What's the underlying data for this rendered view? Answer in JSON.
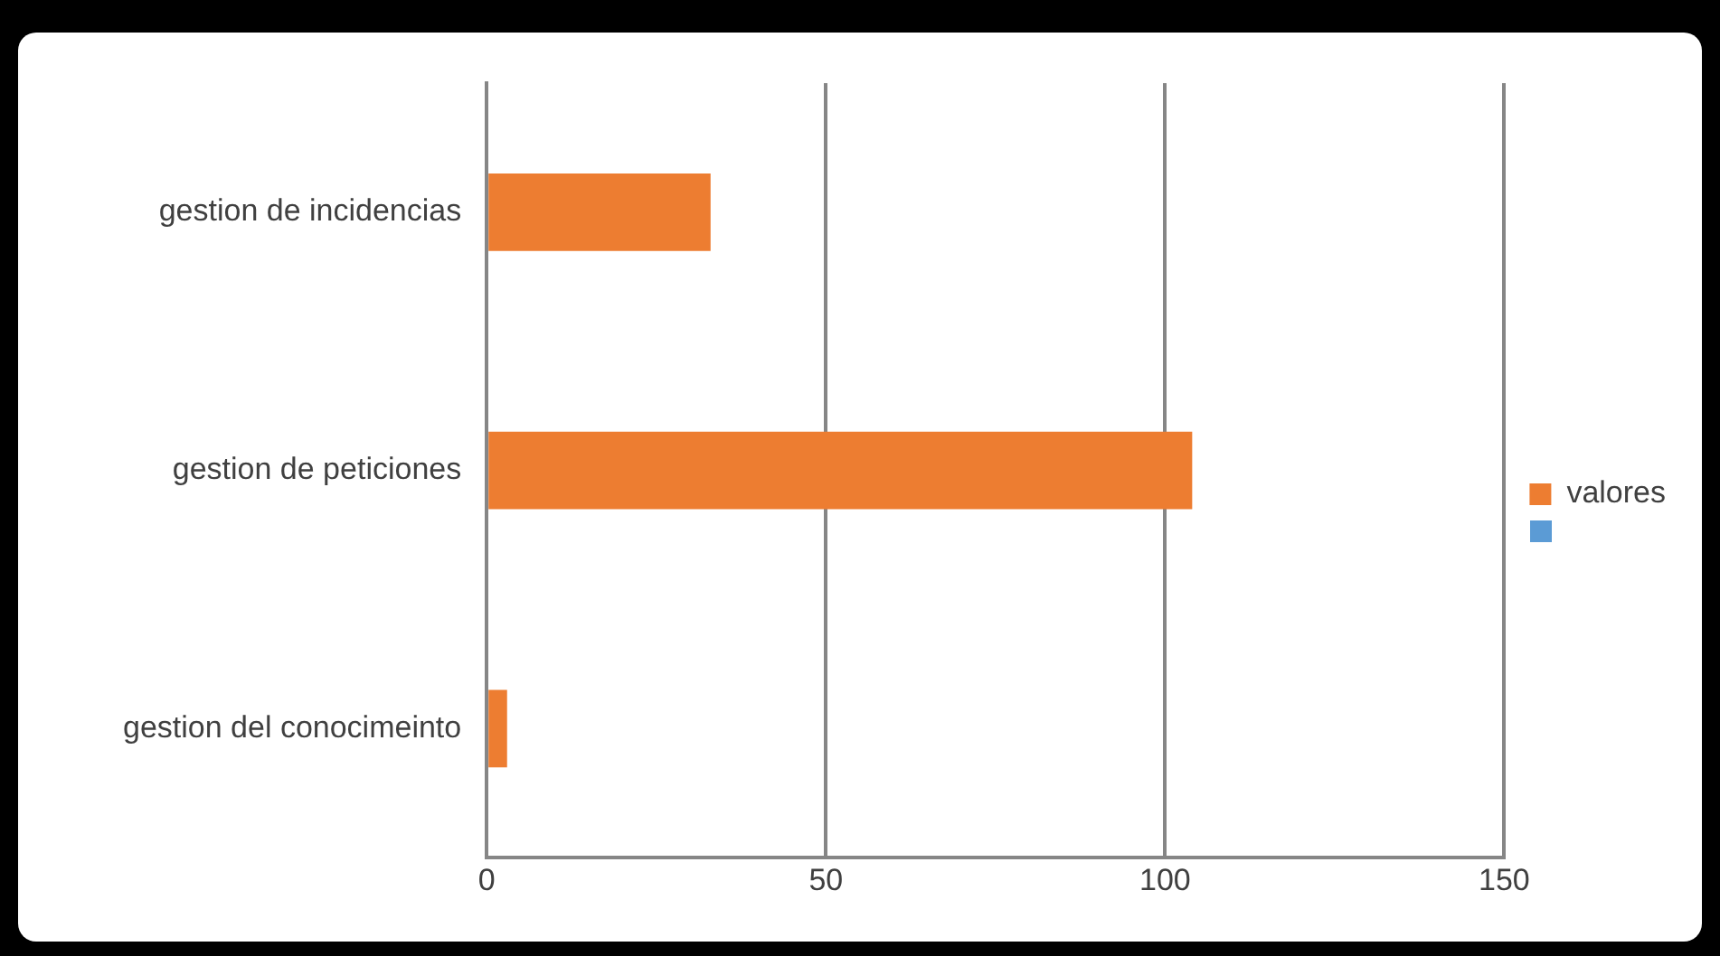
{
  "chart_data": {
    "type": "bar",
    "orientation": "horizontal",
    "categories": [
      "gestion de incidencias",
      "gestion de peticiones",
      "gestion del conocimeinto"
    ],
    "series": [
      {
        "name": "valores",
        "color": "#ed7d31",
        "values": [
          33,
          104,
          3
        ]
      }
    ],
    "xlim": [
      0,
      150
    ],
    "xticks": [
      0,
      50,
      100,
      150
    ],
    "grid": "x",
    "legend": "right"
  }
}
